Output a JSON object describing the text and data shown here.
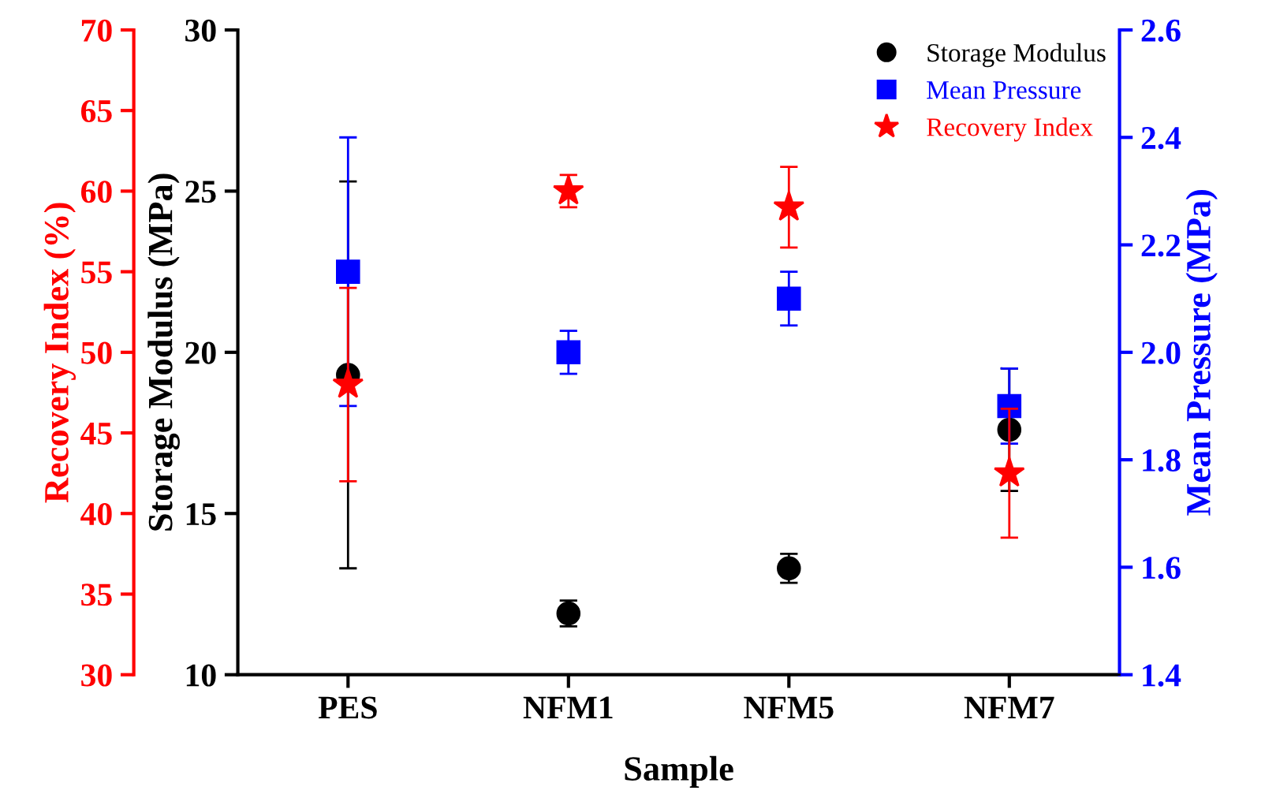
{
  "chart_data": {
    "type": "scatter",
    "xlabel": "Sample",
    "ylabel": "Storage Modulus (MPa)",
    "y2label": "Mean Pressure (MPa)",
    "y3label": "Recovery Index (%)",
    "categories": [
      "PES",
      "NFM1",
      "NFM5",
      "NFM7"
    ],
    "ylim": [
      10,
      30
    ],
    "yticks": [
      10,
      15,
      20,
      25,
      30
    ],
    "y2lim": [
      1.4,
      2.6
    ],
    "y2ticks": [
      1.4,
      1.6,
      1.8,
      {
        "value": 2,
        "label": "2.0"
      },
      2.2,
      2.4,
      2.6
    ],
    "y3lim": [
      30,
      70
    ],
    "y3ticks": [
      30,
      35,
      40,
      45,
      50,
      55,
      60,
      65,
      70
    ],
    "legend": "top right",
    "grid": false,
    "series": [
      {
        "name": "Storage Modulus",
        "color": "#000000",
        "marker": "circle",
        "axis": "y",
        "values": [
          19.3,
          11.9,
          13.3,
          17.6
        ],
        "errors": [
          6.0,
          0.4,
          0.45,
          1.9
        ]
      },
      {
        "name": "Mean Pressure",
        "color": "#0000ff",
        "marker": "square",
        "axis": "y2",
        "values": [
          2.15,
          2.0,
          2.1,
          1.9
        ],
        "errors": [
          0.25,
          0.04,
          0.05,
          0.07
        ]
      },
      {
        "name": "Recovery Index",
        "color": "#ff0000",
        "marker": "star",
        "axis": "y3",
        "values": [
          48,
          60,
          59,
          42.5
        ],
        "errors": [
          6,
          1,
          2.5,
          4
        ]
      }
    ]
  }
}
